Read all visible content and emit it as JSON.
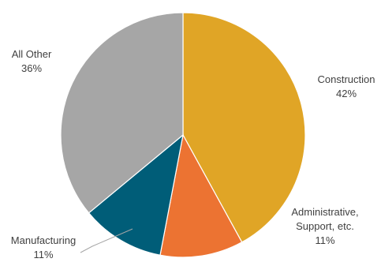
{
  "chart_data": {
    "type": "pie",
    "slices": [
      {
        "label_lines": [
          "Construction"
        ],
        "value": 42,
        "value_label": "42%",
        "color": "#E0A526"
      },
      {
        "label_lines": [
          "Administrative,",
          "Support, etc."
        ],
        "value": 11,
        "value_label": "11%",
        "color": "#EC7332"
      },
      {
        "label_lines": [
          "Manufacturing"
        ],
        "value": 11,
        "value_label": "11%",
        "color": "#005D78"
      },
      {
        "label_lines": [
          "All Other"
        ],
        "value": 36,
        "value_label": "36%",
        "color": "#A6A6A6"
      }
    ],
    "start_angle_deg": 0,
    "direction": "clockwise",
    "legend": "none",
    "data_labels": "outside-end"
  }
}
